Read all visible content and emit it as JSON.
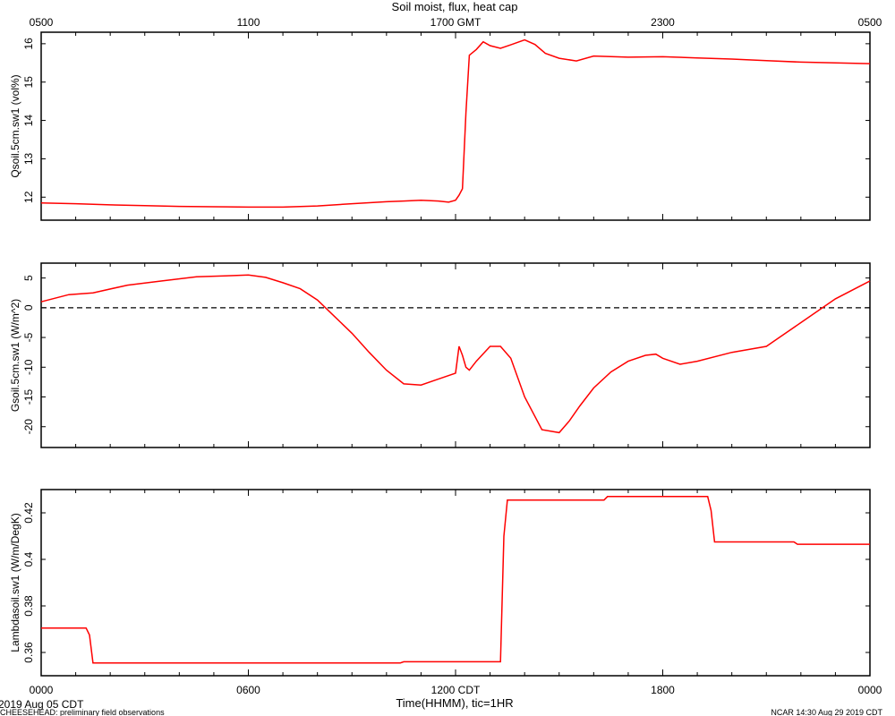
{
  "title": "Soil moist, flux, heat cap",
  "top_axis": {
    "ticks": [
      {
        "hour": 0,
        "label": "0500"
      },
      {
        "hour": 6,
        "label": "1100"
      },
      {
        "hour": 12,
        "label": "1700 GMT"
      },
      {
        "hour": 18,
        "label": "2300"
      },
      {
        "hour": 24,
        "label": "0500"
      }
    ]
  },
  "bottom_axis": {
    "label": "Time(HHMM), tic=1HR",
    "ticks": [
      {
        "hour": 0,
        "label": "0000"
      },
      {
        "hour": 6,
        "label": "0600"
      },
      {
        "hour": 12,
        "label": "1200 CDT"
      },
      {
        "hour": 18,
        "label": "1800"
      },
      {
        "hour": 24,
        "label": "0000"
      }
    ]
  },
  "footer": {
    "date": "2019 Aug 05 CDT",
    "project": "CHEESEHEAD: preliminary field observations",
    "stamp": "NCAR 14:30 Aug 29 2019 CDT"
  },
  "line_color": "#ff0000",
  "chart_data": [
    {
      "type": "line",
      "ylabel": "Qsoil.5cm.sw1 (vol%)",
      "xlim": [
        0,
        24
      ],
      "ylim": [
        11.4,
        16.3
      ],
      "yticks": [
        12,
        13,
        14,
        15,
        16
      ],
      "series": [
        {
          "x": [
            0,
            1,
            2,
            3,
            4,
            5,
            6,
            7,
            8,
            9,
            10,
            10.5,
            11,
            11.5,
            11.8,
            12.0,
            12.1,
            12.2,
            12.3,
            12.4,
            12.6,
            12.8,
            13,
            13.3,
            13.6,
            14,
            14.3,
            14.6,
            15,
            15.5,
            16,
            17,
            18,
            19,
            20,
            21,
            22,
            23,
            24
          ],
          "values": [
            11.85,
            11.83,
            11.8,
            11.78,
            11.76,
            11.75,
            11.74,
            11.74,
            11.77,
            11.83,
            11.88,
            11.9,
            11.92,
            11.9,
            11.87,
            11.92,
            12.05,
            12.22,
            14.2,
            15.7,
            15.85,
            16.05,
            15.95,
            15.88,
            15.97,
            16.1,
            15.98,
            15.75,
            15.62,
            15.55,
            15.68,
            15.65,
            15.66,
            15.63,
            15.6,
            15.56,
            15.52,
            15.5,
            15.48
          ]
        }
      ]
    },
    {
      "type": "line",
      "ylabel": "Gsoil.5cm.sw1 (W/m^2)",
      "xlim": [
        0,
        24
      ],
      "ylim": [
        -23.5,
        7.5
      ],
      "yticks": [
        5,
        0,
        -5,
        -10,
        -15,
        -20
      ],
      "reference_line": 0,
      "series": [
        {
          "x": [
            0,
            0.8,
            1.5,
            2.5,
            3.5,
            4.5,
            5.5,
            6,
            6.5,
            7,
            7.5,
            8,
            8.5,
            9,
            9.5,
            10,
            10.5,
            11,
            11.5,
            12,
            12.1,
            12.2,
            12.3,
            12.4,
            12.6,
            13,
            13.3,
            13.6,
            14,
            14.5,
            15,
            15.3,
            15.6,
            16,
            16.5,
            17,
            17.5,
            17.8,
            18,
            18.5,
            19,
            20,
            21,
            22,
            23,
            24
          ],
          "values": [
            1,
            2.2,
            2.5,
            3.8,
            4.5,
            5.2,
            5.4,
            5.5,
            5.1,
            4.2,
            3.2,
            1.3,
            -1.5,
            -4.3,
            -7.5,
            -10.5,
            -12.8,
            -13.0,
            -12.0,
            -11.0,
            -6.5,
            -8.0,
            -10.0,
            -10.5,
            -9.0,
            -6.5,
            -6.5,
            -8.5,
            -15.0,
            -20.5,
            -21.0,
            -19.0,
            -16.5,
            -13.5,
            -10.8,
            -9.0,
            -8.0,
            -7.8,
            -8.5,
            -9.5,
            -9.0,
            -7.5,
            -6.5,
            -2.5,
            1.5,
            4.5
          ]
        }
      ]
    },
    {
      "type": "line",
      "ylabel": "Lambdasoil.sw1 (W/m/DegK)",
      "xlim": [
        0,
        24
      ],
      "ylim": [
        0.35,
        0.43
      ],
      "yticks": [
        0.36,
        0.38,
        0.4,
        0.42
      ],
      "series": [
        {
          "x": [
            0,
            1.3,
            1.4,
            1.5,
            10.4,
            10.5,
            13.3,
            13.4,
            13.5,
            16.3,
            16.4,
            19.3,
            19.4,
            19.5,
            21.8,
            21.9,
            24
          ],
          "values": [
            0.3705,
            0.3705,
            0.3675,
            0.3555,
            0.3555,
            0.356,
            0.356,
            0.41,
            0.4255,
            0.4255,
            0.427,
            0.427,
            0.421,
            0.4075,
            0.4075,
            0.4065,
            0.4065
          ]
        }
      ]
    }
  ]
}
